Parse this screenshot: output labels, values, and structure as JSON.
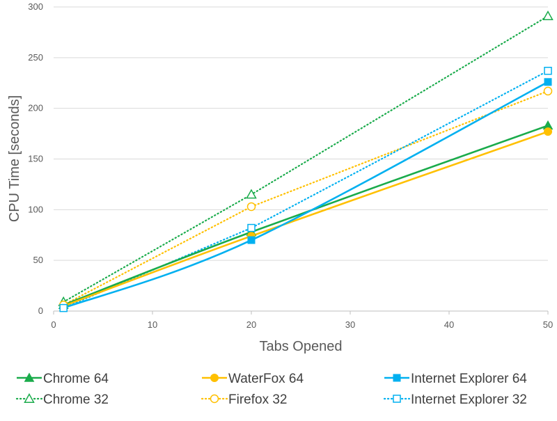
{
  "chart_data": {
    "type": "line",
    "xlabel": "Tabs Opened",
    "ylabel": "CPU Time [seconds]",
    "xlim": [
      0,
      50
    ],
    "ylim": [
      0,
      300
    ],
    "x_ticks": [
      0,
      10,
      20,
      30,
      40,
      50
    ],
    "y_ticks": [
      0,
      50,
      100,
      150,
      200,
      250,
      300
    ],
    "grid": "horizontal",
    "legend_position": "bottom",
    "series": [
      {
        "name": "Chrome 64",
        "color": "#1aab4b",
        "style": "solid",
        "marker": "triangle-filled",
        "x": [
          1,
          20,
          50
        ],
        "y": [
          6,
          78,
          183
        ]
      },
      {
        "name": "WaterFox 64",
        "color": "#ffc000",
        "style": "solid",
        "marker": "circle-filled",
        "x": [
          1,
          20,
          50
        ],
        "y": [
          5,
          74,
          177
        ]
      },
      {
        "name": "Internet Explorer 64",
        "color": "#00b0f0",
        "style": "solid",
        "marker": "square-filled",
        "x": [
          1,
          20,
          50
        ],
        "y": [
          3,
          70,
          226
        ]
      },
      {
        "name": "Chrome 32",
        "color": "#1aab4b",
        "style": "dotted",
        "marker": "triangle-open",
        "x": [
          1,
          20,
          50
        ],
        "y": [
          9,
          115,
          291
        ]
      },
      {
        "name": "Firefox 32",
        "color": "#ffc000",
        "style": "dotted",
        "marker": "circle-open",
        "x": [
          1,
          20,
          50
        ],
        "y": [
          6,
          103,
          217
        ]
      },
      {
        "name": "Internet Explorer 32",
        "color": "#00b0f0",
        "style": "dotted",
        "marker": "square-open",
        "x": [
          1,
          20,
          50
        ],
        "y": [
          3,
          82,
          237
        ]
      }
    ]
  }
}
